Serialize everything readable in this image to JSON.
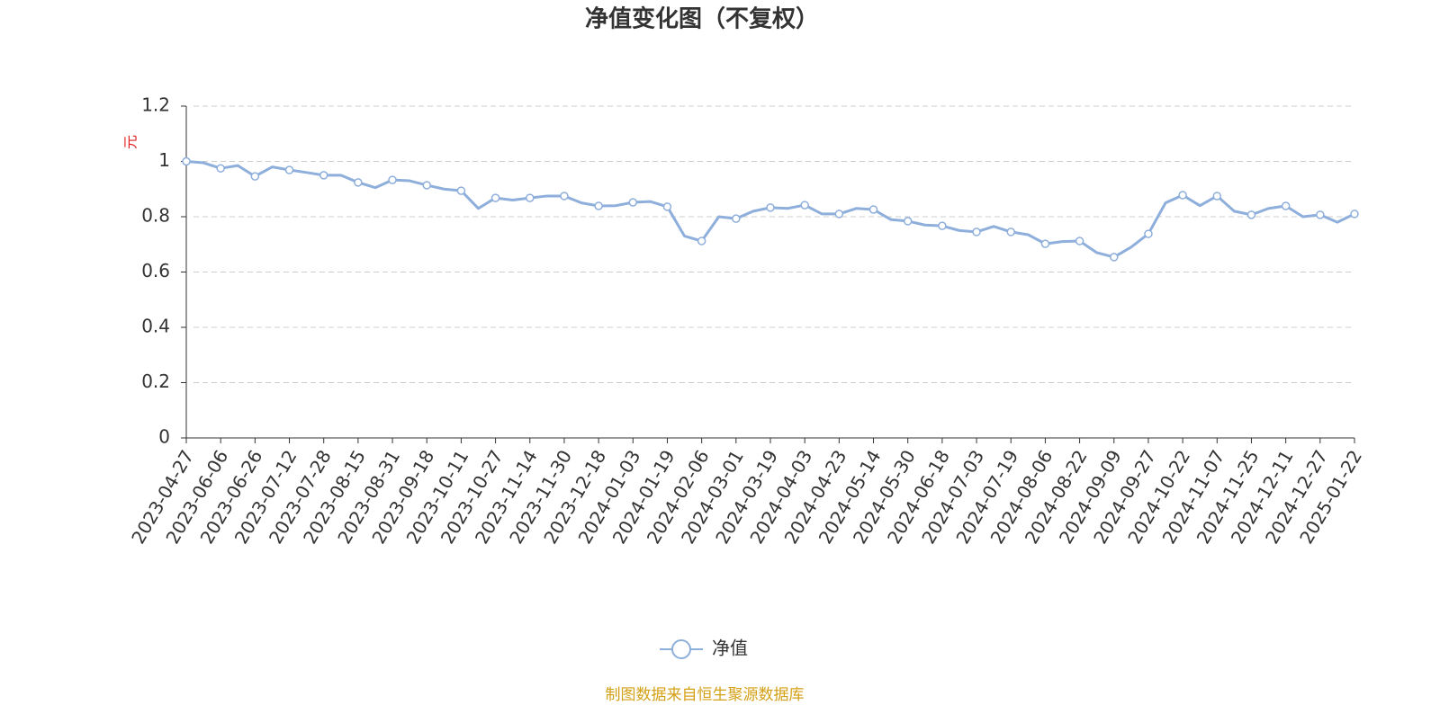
{
  "chart_data": {
    "type": "line",
    "title": "净值变化图（不复权）",
    "y_label": "元",
    "categories": [
      "2023-04-27",
      null,
      "2023-06-06",
      null,
      "2023-06-26",
      null,
      "2023-07-12",
      null,
      "2023-07-28",
      null,
      "2023-08-15",
      null,
      "2023-08-31",
      null,
      "2023-09-18",
      null,
      "2023-10-11",
      null,
      "2023-10-27",
      null,
      "2023-11-14",
      null,
      "2023-11-30",
      null,
      "2023-12-18",
      null,
      "2024-01-03",
      null,
      "2024-01-19",
      null,
      "2024-02-06",
      null,
      "2024-03-01",
      null,
      "2024-03-19",
      null,
      "2024-04-03",
      null,
      "2024-04-23",
      null,
      "2024-05-14",
      null,
      "2024-05-30",
      null,
      "2024-06-18",
      null,
      "2024-07-03",
      null,
      "2024-07-19",
      null,
      "2024-08-06",
      null,
      "2024-08-22",
      null,
      "2024-09-09",
      null,
      "2024-09-27",
      null,
      "2024-10-22",
      null,
      "2024-11-07",
      null,
      "2024-11-25",
      null,
      "2024-12-11",
      null,
      "2024-12-27",
      null,
      "2025-01-22"
    ],
    "series": [
      {
        "name": "净值",
        "color": "#8eaedb",
        "values": [
          1.0,
          0.995,
          0.975,
          0.985,
          0.946,
          0.98,
          0.969,
          0.96,
          0.95,
          0.95,
          0.924,
          0.905,
          0.933,
          0.93,
          0.914,
          0.9,
          0.894,
          0.83,
          0.868,
          0.86,
          0.868,
          0.875,
          0.875,
          0.85,
          0.839,
          0.84,
          0.852,
          0.855,
          0.836,
          0.73,
          0.712,
          0.8,
          0.793,
          0.82,
          0.833,
          0.83,
          0.842,
          0.81,
          0.81,
          0.83,
          0.826,
          0.79,
          0.784,
          0.77,
          0.767,
          0.75,
          0.745,
          0.765,
          0.745,
          0.735,
          0.702,
          0.71,
          0.712,
          0.67,
          0.654,
          0.69,
          0.738,
          0.85,
          0.878,
          0.84,
          0.875,
          0.82,
          0.807,
          0.83,
          0.839,
          0.8,
          0.807,
          0.78,
          0.81
        ]
      }
    ],
    "ylim": [
      0,
      1.2
    ],
    "yticks": [
      0,
      0.2,
      0.4,
      0.6,
      0.8,
      1,
      1.2
    ],
    "grid": true,
    "legend": "bottom",
    "source": "制图数据来自恒生聚源数据库"
  }
}
